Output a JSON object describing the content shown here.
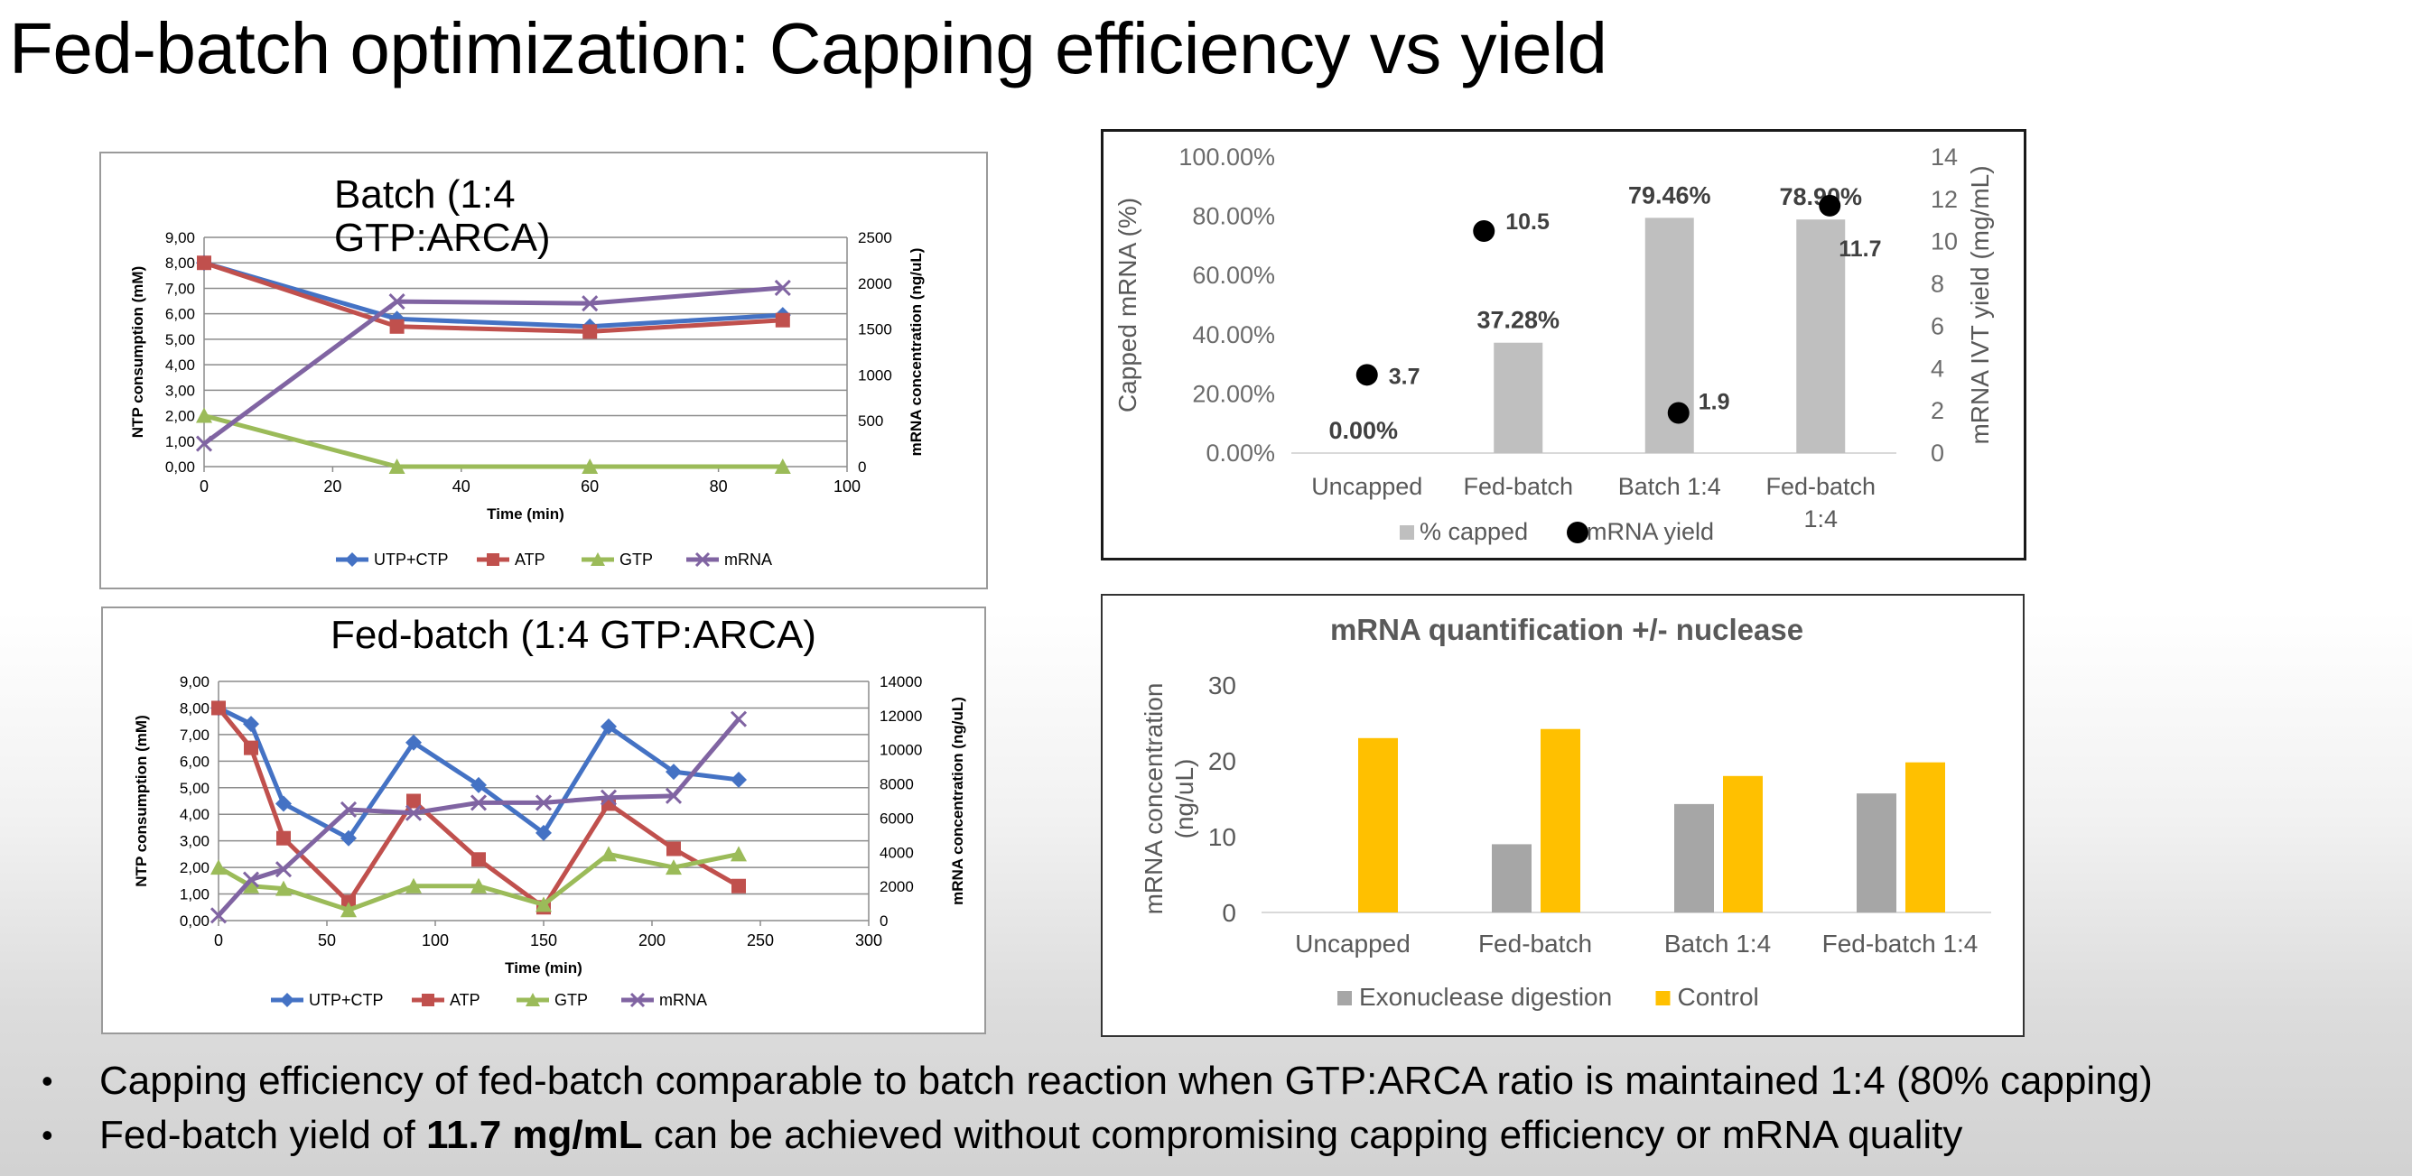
{
  "slide": {
    "title": "Fed-batch optimization: Capping efficiency vs yield",
    "bullets": [
      {
        "text": "Capping efficiency of fed-batch comparable to batch reaction when GTP:ARCA ratio is maintained 1:4 (80% capping)"
      },
      {
        "pre": "Fed-batch yield of ",
        "bold": "11.7 mg/mL",
        "post": " can be achieved without compromising capping efficiency or mRNA quality"
      }
    ]
  },
  "chart_data": [
    {
      "type": "line",
      "title_lines": [
        "Batch (1:4",
        "GTP:ARCA)"
      ],
      "xlabel": "Time (min)",
      "ylabel": "NTP consumption (mM)",
      "y2label": "mRNA concentration (ng/uL)",
      "xlim": [
        0,
        100
      ],
      "xticks": [
        0,
        20,
        40,
        60,
        80,
        100
      ],
      "ylim": [
        0,
        9
      ],
      "yticks": [
        "0,00",
        "1,00",
        "2,00",
        "3,00",
        "4,00",
        "5,00",
        "6,00",
        "7,00",
        "8,00",
        "9,00"
      ],
      "y2lim": [
        0,
        2500
      ],
      "y2ticks": [
        0,
        500,
        1000,
        1500,
        2000,
        2500
      ],
      "grid": true,
      "legend": "bottom",
      "series": [
        {
          "name": "UTP+CTP",
          "color": "#4472c4",
          "marker": "diamond",
          "axis": "left",
          "x": [
            0,
            30,
            60,
            90
          ],
          "y": [
            8.0,
            5.8,
            5.5,
            5.95
          ]
        },
        {
          "name": "ATP",
          "color": "#c0504d",
          "marker": "square",
          "axis": "left",
          "x": [
            0,
            30,
            60,
            90
          ],
          "y": [
            8.0,
            5.5,
            5.3,
            5.75
          ]
        },
        {
          "name": "GTP",
          "color": "#9bbb59",
          "marker": "triangle",
          "axis": "left",
          "x": [
            0,
            30,
            60,
            90
          ],
          "y": [
            2.0,
            0.0,
            0.0,
            0.0
          ]
        },
        {
          "name": "mRNA",
          "color": "#8064a2",
          "marker": "x",
          "axis": "right",
          "x": [
            0,
            30,
            60,
            90
          ],
          "y": [
            250,
            1800,
            1780,
            1950
          ]
        }
      ]
    },
    {
      "type": "line",
      "title": "Fed-batch (1:4 GTP:ARCA)",
      "xlabel": "Time (min)",
      "ylabel": "NTP consumption (mM)",
      "y2label": "mRNA concentration (ng/uL)",
      "xlim": [
        0,
        300
      ],
      "xticks": [
        0,
        50,
        100,
        150,
        200,
        250,
        300
      ],
      "ylim": [
        0,
        9
      ],
      "yticks": [
        "0,00",
        "1,00",
        "2,00",
        "3,00",
        "4,00",
        "5,00",
        "6,00",
        "7,00",
        "8,00",
        "9,00"
      ],
      "y2lim": [
        0,
        14000
      ],
      "y2ticks": [
        0,
        2000,
        4000,
        6000,
        8000,
        10000,
        12000,
        14000
      ],
      "grid": true,
      "legend": "bottom",
      "series": [
        {
          "name": "UTP+CTP",
          "color": "#4472c4",
          "marker": "diamond",
          "axis": "left",
          "x": [
            0,
            15,
            30,
            60,
            90,
            120,
            150,
            180,
            210,
            240
          ],
          "y": [
            8.0,
            7.4,
            4.4,
            3.1,
            6.7,
            5.1,
            3.3,
            7.3,
            5.6,
            5.3
          ]
        },
        {
          "name": "ATP",
          "color": "#c0504d",
          "marker": "square",
          "axis": "left",
          "x": [
            0,
            15,
            30,
            60,
            90,
            120,
            150,
            180,
            210,
            240
          ],
          "y": [
            8.0,
            6.5,
            3.1,
            0.7,
            4.5,
            2.3,
            0.5,
            4.4,
            2.7,
            1.3
          ]
        },
        {
          "name": "GTP",
          "color": "#9bbb59",
          "marker": "triangle",
          "axis": "left",
          "x": [
            0,
            15,
            30,
            60,
            90,
            120,
            150,
            180,
            210,
            240
          ],
          "y": [
            2.0,
            1.3,
            1.2,
            0.4,
            1.3,
            1.3,
            0.6,
            2.5,
            2.0,
            2.5
          ]
        },
        {
          "name": "mRNA",
          "color": "#8064a2",
          "marker": "x",
          "axis": "right",
          "x": [
            0,
            15,
            30,
            60,
            90,
            120,
            150,
            180,
            210,
            240
          ],
          "y": [
            300,
            2400,
            3000,
            6500,
            6300,
            6900,
            6900,
            7200,
            7300,
            11800
          ]
        }
      ]
    },
    {
      "type": "bar",
      "categories": [
        "Uncapped",
        "Fed-batch",
        "Batch 1:4",
        "Fed-batch\n1:4"
      ],
      "ylabel": "Capped mRNA (%)",
      "y2label": "mRNA IVT yield (mg/mL)",
      "ylim": [
        0,
        100
      ],
      "yticks": [
        "0.00%",
        "20.00%",
        "40.00%",
        "60.00%",
        "80.00%",
        "100.00%"
      ],
      "y2lim": [
        0,
        14
      ],
      "y2ticks": [
        0,
        2,
        4,
        6,
        8,
        10,
        12,
        14
      ],
      "grid": false,
      "legend": "bottom",
      "series": [
        {
          "name": "% capped",
          "type": "bar",
          "color": "#bfbfbf",
          "values": [
            0.0,
            37.28,
            79.46,
            78.9
          ],
          "labels": [
            "0.00%",
            "37.28%",
            "79.46%",
            "78.90%"
          ]
        },
        {
          "name": "mRNA yield",
          "type": "scatter",
          "color": "#000000",
          "axis": "right",
          "values": [
            3.7,
            10.5,
            1.9,
            11.7
          ],
          "labels": [
            "3.7",
            "10.5",
            "1.9",
            "11.7"
          ]
        }
      ]
    },
    {
      "type": "bar",
      "title": "mRNA quantification +/- nuclease",
      "categories": [
        "Uncapped",
        "Fed-batch",
        "Batch 1:4",
        "Fed-batch 1:4"
      ],
      "ylabel_lines": [
        "mRNA concentration",
        "(ng/uL)"
      ],
      "ylim": [
        0,
        30
      ],
      "yticks": [
        0,
        10,
        20,
        30
      ],
      "grid": false,
      "legend": "bottom",
      "series": [
        {
          "name": "Exonuclease digestion",
          "color": "#a6a6a6",
          "values": [
            0,
            9,
            14.3,
            15.7
          ]
        },
        {
          "name": "Control",
          "color": "#ffc000",
          "values": [
            23,
            24.2,
            18,
            19.8
          ]
        }
      ]
    }
  ]
}
